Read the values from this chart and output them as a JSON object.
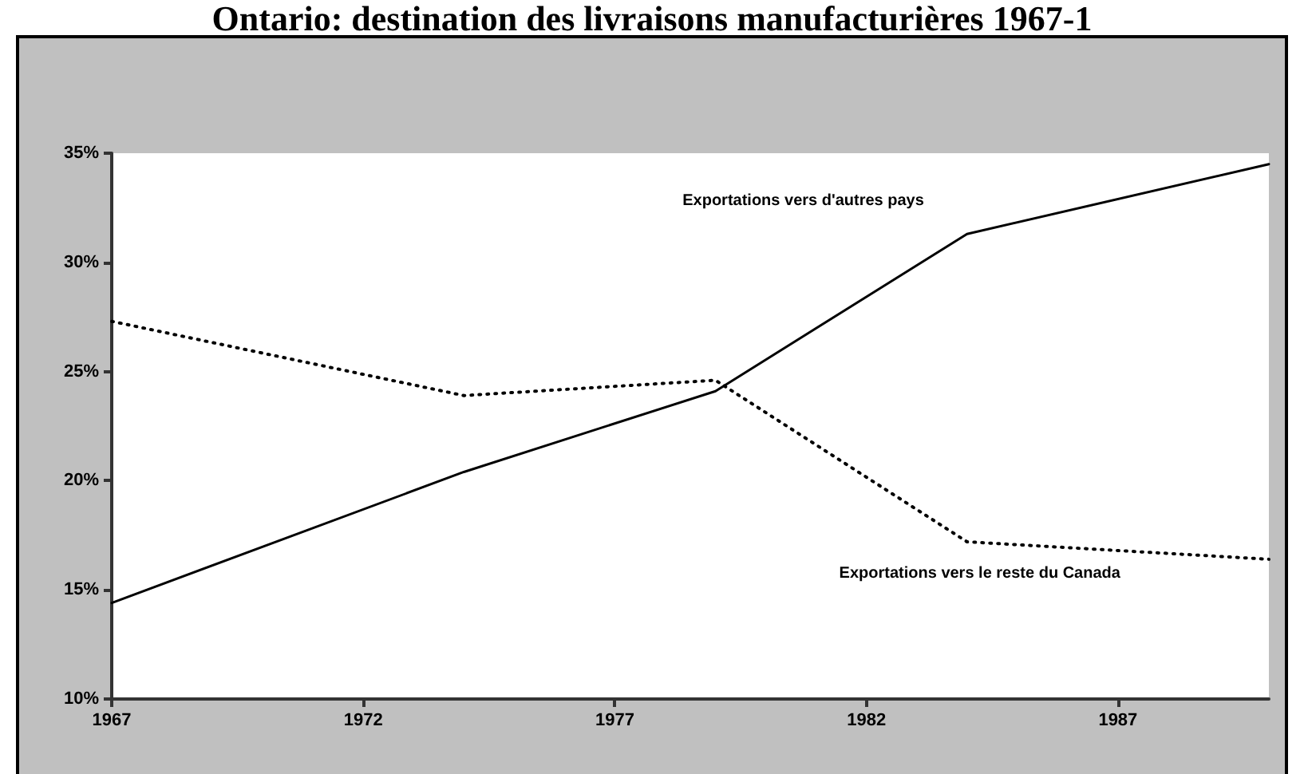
{
  "chart_data": {
    "type": "line",
    "title": "Ontario: destination des livraisons manufacturières 1967-1",
    "x": [
      1967,
      1974,
      1979,
      1984,
      1990
    ],
    "series": [
      {
        "name": "Exportations vers d'autres pays",
        "color": "#000000",
        "line_style": "solid",
        "values": [
          14.4,
          20.4,
          24.1,
          31.3,
          34.5
        ]
      },
      {
        "name": "Exportations vers le reste du Canada",
        "color": "#000000",
        "line_style": "dotted",
        "values": [
          27.3,
          23.9,
          24.6,
          17.2,
          16.4
        ]
      }
    ],
    "xlim": [
      1967,
      1990
    ],
    "xticks": [
      1967,
      1972,
      1977,
      1982,
      1987
    ],
    "ylim": [
      10,
      35
    ],
    "yticks": [
      {
        "value": 10,
        "label": "10%"
      },
      {
        "value": 15,
        "label": "15%"
      },
      {
        "value": 20,
        "label": "20%"
      },
      {
        "value": 25,
        "label": "25%"
      },
      {
        "value": 30,
        "label": "30%"
      },
      {
        "value": 35,
        "label": "35%"
      }
    ],
    "grid": false,
    "legend": false,
    "marker": "none"
  }
}
